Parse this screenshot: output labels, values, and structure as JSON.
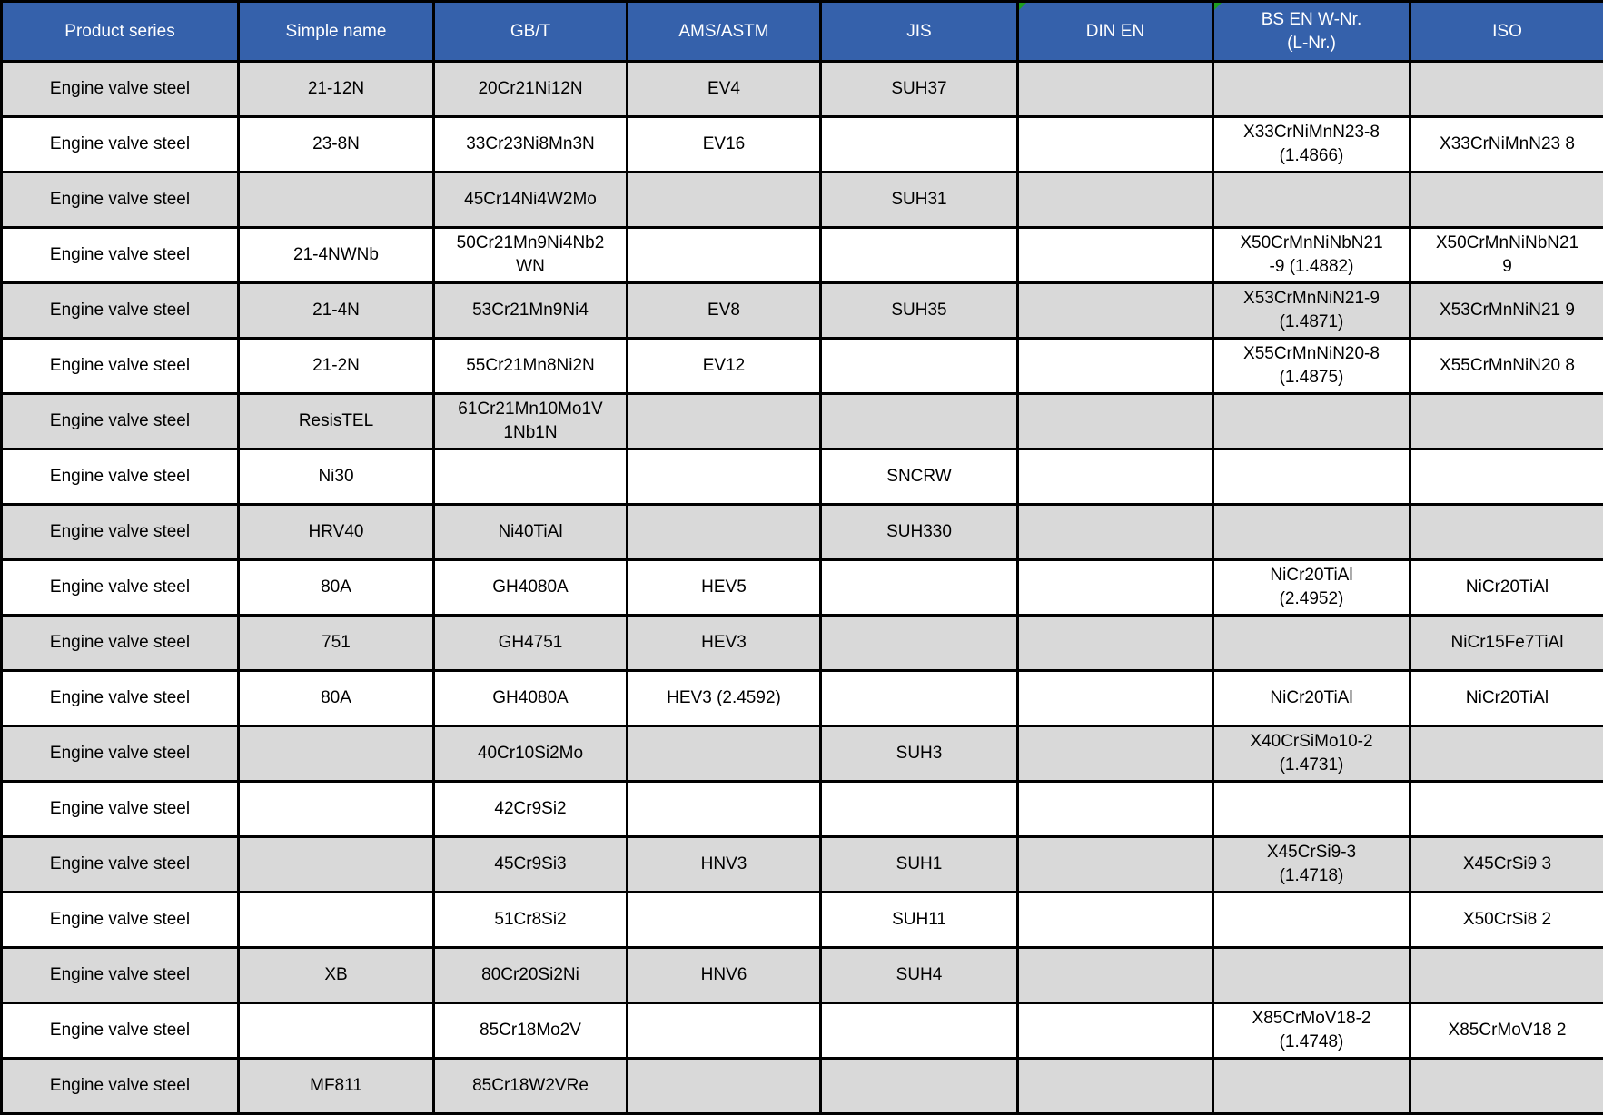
{
  "table": {
    "colors": {
      "header_bg": "#3561ab",
      "header_text": "#ffffff",
      "row_alt_bg": "#d9d9d9",
      "row_bg": "#ffffff",
      "border": "#000000",
      "cell_text": "#000000",
      "flag_green": "#1e9e1e"
    },
    "columns": [
      {
        "key": "product_series",
        "label": "Product series"
      },
      {
        "key": "simple_name",
        "label": "Simple name"
      },
      {
        "key": "gbt",
        "label": "GB/T"
      },
      {
        "key": "ams_astm",
        "label": "AMS/ASTM"
      },
      {
        "key": "jis",
        "label": "JIS"
      },
      {
        "key": "din_en",
        "label": "DIN EN",
        "corner_flag": true
      },
      {
        "key": "bs_en_wnr",
        "label": "BS EN W-Nr.\n(L-Nr.)",
        "corner_flag": true
      },
      {
        "key": "iso",
        "label": "ISO"
      }
    ],
    "rows": [
      [
        "Engine valve steel",
        "21-12N",
        "20Cr21Ni12N",
        "EV4",
        "SUH37",
        "",
        "",
        ""
      ],
      [
        "Engine valve steel",
        "23-8N",
        "33Cr23Ni8Mn3N",
        "EV16",
        "",
        "",
        "X33CrNiMnN23-8\n(1.4866)",
        "X33CrNiMnN23 8"
      ],
      [
        "Engine valve steel",
        "",
        "45Cr14Ni4W2Mo",
        "",
        "SUH31",
        "",
        "",
        ""
      ],
      [
        "Engine valve steel",
        "21-4NWNb",
        "50Cr21Mn9Ni4Nb2\nWN",
        "",
        "",
        "",
        "X50CrMnNiNbN21\n-9 (1.4882)",
        "X50CrMnNiNbN21\n9"
      ],
      [
        "Engine valve steel",
        "21-4N",
        "53Cr21Mn9Ni4",
        "EV8",
        "SUH35",
        "",
        "X53CrMnNiN21-9\n(1.4871)",
        "X53CrMnNiN21 9"
      ],
      [
        "Engine valve steel",
        "21-2N",
        "55Cr21Mn8Ni2N",
        "EV12",
        "",
        "",
        "X55CrMnNiN20-8\n(1.4875)",
        "X55CrMnNiN20 8"
      ],
      [
        "Engine valve steel",
        "ResisTEL",
        "61Cr21Mn10Mo1V\n1Nb1N",
        "",
        "",
        "",
        "",
        ""
      ],
      [
        "Engine valve steel",
        "Ni30",
        "",
        "",
        "SNCRW",
        "",
        "",
        ""
      ],
      [
        "Engine valve steel",
        "HRV40",
        "Ni40TiAl",
        "",
        "SUH330",
        "",
        "",
        ""
      ],
      [
        "Engine valve steel",
        "80A",
        "GH4080A",
        "HEV5",
        "",
        "",
        "NiCr20TiAl\n(2.4952)",
        "NiCr20TiAl"
      ],
      [
        "Engine valve steel",
        "751",
        "GH4751",
        "HEV3",
        "",
        "",
        "",
        "NiCr15Fe7TiAl"
      ],
      [
        "Engine valve steel",
        "80A",
        "GH4080A",
        "HEV3 (2.4592)",
        "",
        "",
        "NiCr20TiAl",
        "NiCr20TiAl"
      ],
      [
        "Engine valve steel",
        "",
        "40Cr10Si2Mo",
        "",
        "SUH3",
        "",
        "X40CrSiMo10-2\n(1.4731)",
        ""
      ],
      [
        "Engine valve steel",
        "",
        "42Cr9Si2",
        "",
        "",
        "",
        "",
        ""
      ],
      [
        "Engine valve steel",
        "",
        "45Cr9Si3",
        "HNV3",
        "SUH1",
        "",
        "X45CrSi9-3\n(1.4718)",
        "X45CrSi9 3"
      ],
      [
        "Engine valve steel",
        "",
        "51Cr8Si2",
        "",
        "SUH11",
        "",
        "",
        "X50CrSi8 2"
      ],
      [
        "Engine valve steel",
        "XB",
        "80Cr20Si2Ni",
        "HNV6",
        "SUH4",
        "",
        "",
        ""
      ],
      [
        "Engine valve steel",
        "",
        "85Cr18Mo2V",
        "",
        "",
        "",
        "X85CrMoV18-2\n(1.4748)",
        "X85CrMoV18 2"
      ],
      [
        "Engine valve steel",
        "MF811",
        "85Cr18W2VRe",
        "",
        "",
        "",
        "",
        ""
      ]
    ]
  }
}
